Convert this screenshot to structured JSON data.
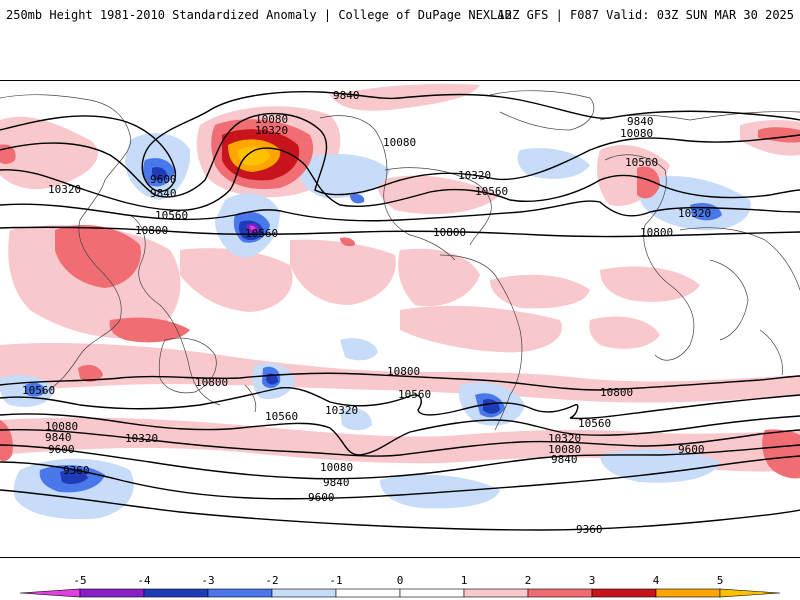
{
  "header": {
    "title": "250mb Height 1981-2010 Standardized Anomaly | College of DuPage NEXLAB",
    "run_info": "12Z GFS | F087 Valid: 03Z SUN MAR 30 2025"
  },
  "colors": {
    "neg5": "#e040e0",
    "neg4": "#8b1fc7",
    "neg3": "#1f3cb8",
    "neg2": "#4a78ea",
    "neg1": "#c6dcf8",
    "pos1": "#f8c8cc",
    "pos2": "#f06e73",
    "pos3": "#c8141c",
    "pos4": "#ffa500",
    "pos5": "#ffc000",
    "contour": "#000000",
    "coast": "#444444"
  },
  "colorbar": {
    "ticks": [
      "-5",
      "-4",
      "-3",
      "-2",
      "-1",
      "0",
      "1",
      "2",
      "3",
      "4",
      "5"
    ]
  },
  "contour_labels": {
    "c9840_a": "9840",
    "c10080_a": "10080",
    "c10320_a": "10320",
    "c9600_a": "9600",
    "c9840_b": "9840",
    "c10560_a": "10560",
    "c10800_a": "10800",
    "c10560_b": "10560",
    "c10080_b": "10080",
    "c10320_b": "10320",
    "c10560_c": "10560",
    "c10800_b": "10800",
    "c9840_c": "9840",
    "c10080_c": "10080",
    "c10560_d": "10560",
    "c10320_c": "10320",
    "c10800_c": "10800",
    "c10560_e": "10560",
    "c10080_d": "10080",
    "c9840_d": "9840",
    "c9600_b": "9600",
    "c10320_d": "10320",
    "c9360_a": "9360",
    "c10800_d": "10800",
    "c10560_f": "10560",
    "c10320_e": "10320",
    "c10080_e": "10080",
    "c9840_e": "9840",
    "c9600_c": "9600",
    "c10800_e": "10800",
    "c10560_g": "10560",
    "c10800_f": "10800",
    "c10560_h": "10560",
    "c10320_f": "10320",
    "c10080_f": "10080",
    "c9840_f": "9840",
    "c9600_d": "9600",
    "c9360_b": "9360"
  }
}
